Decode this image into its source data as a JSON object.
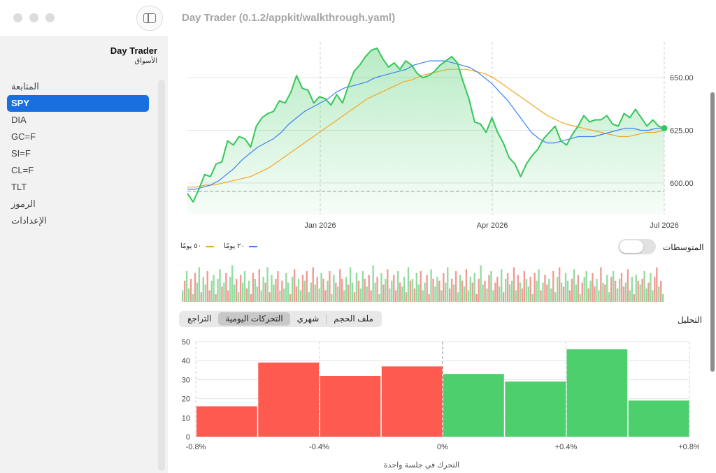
{
  "window": {
    "title": "Day Trader (0.1.2/appkit/walkthrough.yaml)"
  },
  "sidebar": {
    "app_name": "Day Trader",
    "app_subtitle": "الأسواق",
    "items": [
      {
        "label": "المتابعة",
        "selected": false
      },
      {
        "label": "SPY",
        "selected": true
      },
      {
        "label": "DIA",
        "selected": false
      },
      {
        "label": "GC=F",
        "selected": false
      },
      {
        "label": "SI=F",
        "selected": false
      },
      {
        "label": "CL=F",
        "selected": false
      },
      {
        "label": "TLT",
        "selected": false
      },
      {
        "label": "الرموز",
        "selected": false
      },
      {
        "label": "الإعدادات",
        "selected": false
      }
    ]
  },
  "averages": {
    "label": "المتوسطات",
    "enabled": false,
    "legend_20": "٢٠ يومًا",
    "legend_50": "٥٠ يومًا"
  },
  "analysis": {
    "label": "التحليل",
    "tabs": [
      {
        "label": "ملف الحجم",
        "selected": false
      },
      {
        "label": "شهري",
        "selected": false
      },
      {
        "label": "التحركات اليومية",
        "selected": true
      },
      {
        "label": "التراجع",
        "selected": false
      }
    ]
  },
  "colors": {
    "accent": "#1a6fe0",
    "price": "#34c759",
    "ma20": "#3b82f6",
    "ma50": "#f5a623",
    "down": "#ff5a4f",
    "up": "#4ecf6e"
  },
  "chart_data": [
    {
      "type": "line",
      "title": "",
      "x_ticks": [
        "Jan 2026",
        "Apr 2026",
        "Jul 2026"
      ],
      "y_ticks": [
        "600.00",
        "625.00",
        "650.00"
      ],
      "ylim": [
        585,
        667
      ],
      "baseline": 596,
      "series": [
        {
          "name": "",
          "values": [
            595,
            591,
            597,
            604,
            603,
            609,
            610,
            620,
            618,
            622,
            621,
            617,
            627,
            631,
            633,
            634,
            639,
            638,
            643,
            651,
            645,
            644,
            638,
            641,
            640,
            637,
            642,
            638,
            646,
            653,
            656,
            660,
            663,
            664,
            659,
            655,
            657,
            654,
            658,
            656,
            652,
            650,
            651,
            653,
            656,
            658,
            660,
            657,
            648,
            640,
            629,
            628,
            624,
            631,
            624,
            619,
            612,
            609,
            603,
            609,
            613,
            616,
            621,
            624,
            627,
            620,
            618,
            623,
            627,
            632,
            629,
            630,
            630,
            632,
            628,
            627,
            633,
            631,
            635,
            631,
            627,
            630,
            627,
            626
          ]
        },
        {
          "name": "٢٠ يومًا",
          "values": [
            597,
            597,
            598,
            599,
            601,
            604,
            607,
            611,
            614,
            617,
            619,
            621,
            624,
            628,
            631,
            634,
            636,
            638,
            640,
            643,
            645,
            646,
            647,
            648,
            650,
            651,
            652,
            653,
            654,
            656,
            657,
            658,
            658,
            658,
            657,
            656,
            655,
            653,
            650,
            647,
            643,
            639,
            634,
            629,
            624,
            621,
            619,
            619,
            620,
            621,
            622,
            622,
            622,
            623,
            624,
            625,
            626,
            626,
            625,
            625,
            626,
            626
          ]
        },
        {
          "name": "٥٠ يومًا",
          "values": [
            598,
            598,
            599,
            599,
            600,
            601,
            602,
            603,
            605,
            607,
            610,
            613,
            616,
            619,
            622,
            625,
            628,
            631,
            634,
            637,
            640,
            642,
            644,
            646,
            648,
            649,
            651,
            652,
            653,
            654,
            654,
            654,
            653,
            652,
            650,
            647,
            644,
            641,
            638,
            635,
            632,
            630,
            628,
            627,
            626,
            625,
            624,
            623,
            622,
            622,
            623,
            624,
            624,
            625
          ]
        }
      ]
    },
    {
      "type": "bar",
      "title": "",
      "volume_up_down": [
        1,
        0,
        1,
        1,
        0,
        1,
        0,
        1,
        1,
        0,
        1,
        1,
        0,
        0,
        1,
        1,
        0,
        1,
        1,
        0,
        1,
        0,
        0,
        1,
        1,
        1,
        0,
        1,
        0,
        1,
        1,
        0,
        1,
        0,
        0,
        1,
        1,
        0,
        1,
        1,
        0,
        1,
        0,
        1,
        1,
        0,
        0,
        1,
        0,
        1,
        1,
        1,
        0,
        1,
        0,
        0,
        1,
        1,
        0,
        1,
        0,
        1,
        1,
        0,
        1,
        0,
        1,
        1,
        0,
        0,
        1,
        0,
        1,
        1,
        0,
        1,
        0,
        0,
        1,
        1,
        0,
        1,
        1,
        0,
        1,
        0,
        1,
        1,
        0,
        1,
        0,
        0,
        1,
        1,
        0,
        1,
        1,
        0,
        1,
        0,
        1,
        1,
        0,
        0,
        1,
        0,
        1,
        1,
        0,
        1,
        0,
        1,
        0,
        1,
        1,
        0,
        1,
        1,
        0,
        0,
        1,
        0,
        1,
        1,
        0,
        1,
        0,
        1,
        1,
        0,
        0,
        1,
        0,
        1,
        1,
        0,
        1,
        0,
        1,
        1,
        0,
        1,
        0,
        0,
        1,
        1,
        0,
        1,
        0,
        1,
        1,
        0,
        0,
        1,
        1,
        0,
        1,
        0,
        1,
        1,
        0,
        1,
        0,
        1,
        0,
        0,
        1,
        1,
        0,
        1,
        0,
        1,
        1,
        0,
        1,
        0,
        0,
        1,
        1,
        0,
        1,
        1,
        0,
        1,
        0,
        1,
        1,
        0,
        0,
        1,
        1,
        0,
        1,
        0,
        1,
        1,
        0,
        1,
        0,
        0,
        1,
        1,
        0,
        1,
        0,
        1,
        1,
        0,
        1,
        0,
        1,
        1,
        0,
        0,
        1,
        0,
        1,
        1,
        0,
        1,
        0,
        1,
        0,
        1,
        1,
        0,
        1,
        1,
        0,
        0,
        1,
        0,
        1,
        1,
        0,
        1
      ],
      "volume_heights": [
        0.3,
        0.55,
        0.8,
        0.35,
        0.6,
        0.2,
        0.75,
        0.5,
        0.9,
        0.25,
        0.65,
        0.45,
        0.8,
        0.3,
        0.55,
        0.7,
        0.2,
        0.6,
        0.85,
        0.4,
        0.5,
        0.75,
        0.3,
        0.65,
        0.95,
        0.45,
        0.6,
        0.25,
        0.7,
        0.5,
        0.8,
        0.35,
        0.55,
        0.2,
        0.75,
        0.6,
        0.4,
        0.85,
        0.3,
        0.65,
        0.5,
        0.9,
        0.25,
        0.7,
        0.45,
        0.6,
        0.8,
        0.3,
        0.55,
        0.35,
        0.75,
        0.5,
        0.2,
        0.65,
        0.85,
        0.4,
        0.6,
        0.3,
        0.7,
        0.55,
        0.8,
        0.25,
        0.5,
        0.9,
        0.45,
        0.65,
        0.35,
        0.75,
        0.6,
        0.3,
        0.55,
        0.8,
        0.2,
        0.7,
        0.5,
        0.4,
        0.85,
        0.6,
        0.3,
        0.65,
        0.45,
        0.9,
        0.5,
        0.25,
        0.75,
        0.55,
        0.35,
        0.8,
        0.6,
        0.4,
        0.7,
        0.3,
        0.95,
        0.5,
        0.65,
        0.2,
        0.75,
        0.45,
        0.6,
        0.85,
        0.35,
        0.55,
        0.7,
        0.3,
        0.8,
        0.5,
        0.4,
        0.65,
        0.25,
        0.9,
        0.55,
        0.6,
        0.35,
        0.75,
        0.45,
        0.8,
        0.3,
        0.5,
        0.7,
        0.2,
        0.85,
        0.6,
        0.4,
        0.65,
        0.55,
        0.3,
        0.75,
        0.5,
        0.9,
        0.35,
        0.6,
        0.45,
        0.8,
        0.25,
        0.7,
        0.55,
        0.4,
        0.85,
        0.3,
        0.65,
        0.5,
        0.75,
        0.2,
        0.6,
        0.95,
        0.45,
        0.55,
        0.35,
        0.7,
        0.8,
        0.3,
        0.5,
        0.65,
        0.4,
        0.85,
        0.25,
        0.6,
        0.75,
        0.45,
        0.55,
        0.9,
        0.3,
        0.7,
        0.5,
        0.35,
        0.8,
        0.6,
        0.4,
        0.65,
        0.2,
        0.75,
        0.55,
        0.85,
        0.3,
        0.5,
        0.7,
        0.45,
        0.6,
        0.35,
        0.8,
        0.25,
        0.65,
        0.9,
        0.5,
        0.4,
        0.75,
        0.55,
        0.3,
        0.6,
        0.85,
        0.45,
        0.7,
        0.2,
        0.5,
        0.65,
        0.8,
        0.35,
        0.55,
        0.75,
        0.4,
        0.6,
        0.3,
        0.9,
        0.5,
        0.45,
        0.7,
        0.25,
        0.65,
        0.8,
        0.55,
        0.35,
        0.6,
        0.75,
        0.4,
        0.5,
        0.85,
        0.3,
        0.65,
        0.2,
        0.7,
        0.55,
        0.45,
        0.6,
        0.8,
        0.35,
        0.5,
        0.75,
        0.3,
        0.65,
        0.9,
        0.4,
        0.55,
        0.2
      ]
    },
    {
      "type": "bar",
      "title": "",
      "xlabel": "التحرك في جلسة واحدة",
      "x_ticks": [
        "-0.8%",
        "-0.4%",
        "0%",
        "+0.4%",
        "+0.8%"
      ],
      "y_ticks": [
        "0",
        "10",
        "20",
        "30",
        "40",
        "50"
      ],
      "ylim": [
        0,
        50
      ],
      "bins": [
        {
          "from": -0.8,
          "to": -0.6,
          "count": 16
        },
        {
          "from": -0.6,
          "to": -0.4,
          "count": 39
        },
        {
          "from": -0.4,
          "to": -0.2,
          "count": 32
        },
        {
          "from": -0.2,
          "to": 0.0,
          "count": 37
        },
        {
          "from": 0.0,
          "to": 0.2,
          "count": 33
        },
        {
          "from": 0.2,
          "to": 0.4,
          "count": 29
        },
        {
          "from": 0.4,
          "to": 0.6,
          "count": 46
        },
        {
          "from": 0.6,
          "to": 0.8,
          "count": 19
        }
      ]
    }
  ]
}
